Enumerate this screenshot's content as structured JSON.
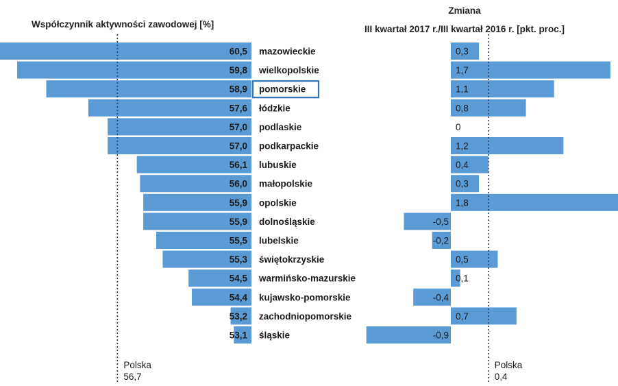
{
  "colors": {
    "bar": "#5b9bd5",
    "highlight_border": "#2e75b6",
    "text": "#1a1a1a"
  },
  "highlight_region": "pomorskie",
  "chart_data": [
    {
      "type": "bar",
      "orientation": "horizontal",
      "title": "Współczynnik aktywności zawodowej [%]",
      "categories": [
        "mazowieckie",
        "wielkopolskie",
        "pomorskie",
        "łódzkie",
        "podlaskie",
        "podkarpackie",
        "lubuskie",
        "małopolskie",
        "opolskie",
        "dolnośląskie",
        "lubelskie",
        "świętokrzyskie",
        "warmińsko-mazurskie",
        "kujawsko-pomorskie",
        "zachodniopomorskie",
        "śląskie"
      ],
      "values": [
        60.5,
        59.8,
        58.9,
        57.6,
        57.0,
        57.0,
        56.1,
        56.0,
        55.9,
        55.9,
        55.5,
        55.3,
        54.5,
        54.4,
        53.2,
        53.1
      ],
      "value_labels": [
        "60,5",
        "59,8",
        "58,9",
        "57,6",
        "57,0",
        "57,0",
        "56,1",
        "56,0",
        "55,9",
        "55,9",
        "55,5",
        "55,3",
        "54,5",
        "54,4",
        "53,2",
        "53,1"
      ],
      "reference_line": {
        "label": "Polska",
        "value": 56.7,
        "value_label": "56,7"
      }
    },
    {
      "type": "bar",
      "orientation": "horizontal",
      "title_lines": [
        "Zmiana",
        "III kwartał 2017 r./III kwartał 2016 r. [pkt. proc.]"
      ],
      "categories": [
        "mazowieckie",
        "wielkopolskie",
        "pomorskie",
        "łódzkie",
        "podlaskie",
        "podkarpackie",
        "lubuskie",
        "małopolskie",
        "opolskie",
        "dolnośląskie",
        "lubelskie",
        "świętokrzyskie",
        "warmińsko-mazurskie",
        "kujawsko-pomorskie",
        "zachodniopomorskie",
        "śląskie"
      ],
      "values": [
        0.3,
        1.7,
        1.1,
        0.8,
        0,
        1.2,
        0.4,
        0.3,
        1.8,
        -0.5,
        -0.2,
        0.5,
        0.1,
        -0.4,
        0.7,
        -0.9
      ],
      "value_labels": [
        "0,3",
        "1,7",
        "1,1",
        "0,8",
        "0",
        "1,2",
        "0,4",
        "0,3",
        "1,8",
        "-0,5",
        "-0,2",
        "0,5",
        "0,1",
        "-0,4",
        "0,7",
        "-0,9"
      ],
      "reference_line": {
        "label": "Polska",
        "value": 0.4,
        "value_label": "0,4"
      }
    }
  ]
}
